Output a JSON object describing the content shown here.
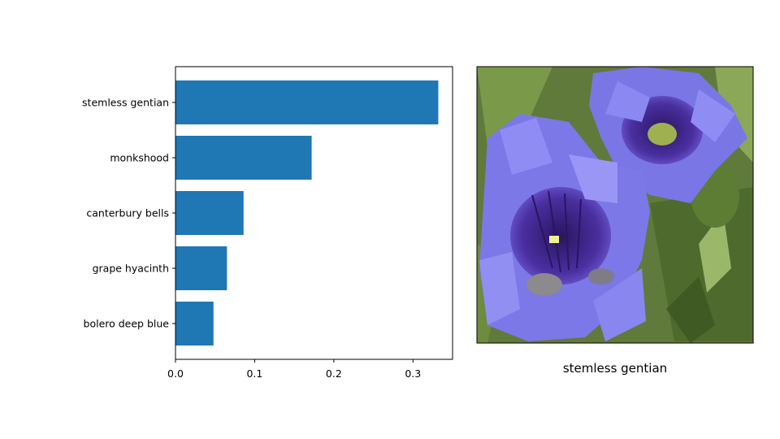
{
  "chart_data": {
    "type": "bar",
    "orientation": "horizontal",
    "categories": [
      "stemless gentian",
      "monkshood",
      "canterbury bells",
      "grape hyacinth",
      "bolero deep blue"
    ],
    "values": [
      0.332,
      0.172,
      0.086,
      0.065,
      0.048
    ],
    "xlim": [
      0.0,
      0.35
    ],
    "xticks": [
      "0.0",
      "0.1",
      "0.2",
      "0.3"
    ],
    "xtick_values": [
      0.0,
      0.1,
      0.2,
      0.3
    ],
    "bar_color": "#1f77b4",
    "grid": false
  },
  "image_panel": {
    "caption": "stemless gentian",
    "subject": "purple-blue gentian flowers with green leaves"
  }
}
